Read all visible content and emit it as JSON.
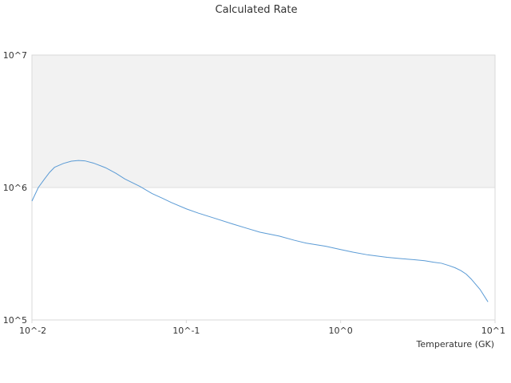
{
  "chart_data": {
    "type": "line",
    "title": "Calculated Rate",
    "xlabel": "Temperature (GK)",
    "ylabel": "",
    "x_scale": "log",
    "y_scale": "log",
    "xlim": [
      0.01,
      10
    ],
    "ylim": [
      100000,
      10000000
    ],
    "x_ticks": [
      "10^-2",
      "10^-1",
      "10^0",
      "10^1"
    ],
    "y_ticks": [
      "10^5",
      "10^6",
      "10^7"
    ],
    "grid": false,
    "legend": "none",
    "shaded_band": {
      "ymin": 1000000,
      "ymax": 10000000,
      "color": "#f2f2f2"
    },
    "series": [
      {
        "color": "#5b9bd5",
        "x": [
          0.01,
          0.011,
          0.012,
          0.013,
          0.014,
          0.016,
          0.018,
          0.02,
          0.022,
          0.025,
          0.03,
          0.035,
          0.04,
          0.05,
          0.06,
          0.07,
          0.08,
          0.1,
          0.12,
          0.15,
          0.2,
          0.25,
          0.3,
          0.4,
          0.5,
          0.6,
          0.8,
          1.0,
          1.2,
          1.5,
          2.0,
          2.5,
          3.0,
          3.5,
          4.0,
          4.5,
          5.0,
          5.5,
          6.0,
          6.5,
          7.0,
          8.0,
          9.0
        ],
        "y": [
          790000,
          1000000,
          1150000,
          1300000,
          1420000,
          1520000,
          1580000,
          1600000,
          1590000,
          1530000,
          1410000,
          1280000,
          1160000,
          1020000,
          900000,
          830000,
          770000,
          690000,
          640000,
          590000,
          530000,
          490000,
          460000,
          430000,
          400000,
          380000,
          360000,
          340000,
          325000,
          310000,
          297000,
          290000,
          285000,
          280000,
          273000,
          268000,
          258000,
          248000,
          236000,
          222000,
          204000,
          170000,
          137000
        ]
      }
    ]
  }
}
